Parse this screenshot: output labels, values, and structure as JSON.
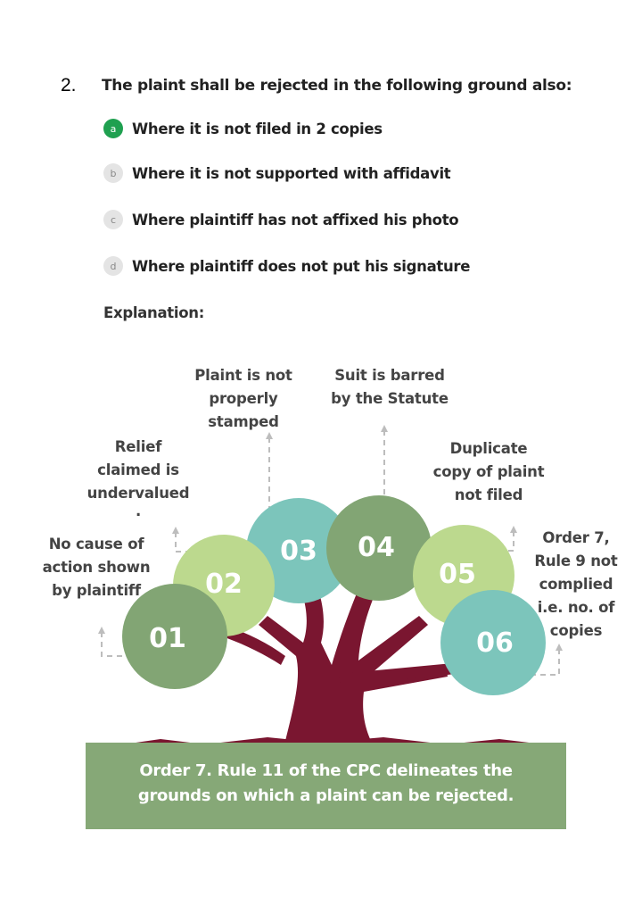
{
  "question": {
    "number": "2.",
    "text": "The plaint shall be rejected in the following ground also:",
    "options": [
      {
        "letter": "a",
        "text": "Where it is not filed in 2 copies",
        "correct": true
      },
      {
        "letter": "b",
        "text": "Where it is not supported with affidavit",
        "correct": false
      },
      {
        "letter": "c",
        "text": "Where plaintiff has not affixed his photo",
        "correct": false
      },
      {
        "letter": "d",
        "text": "Where plaintiff does not put his signature",
        "correct": false
      }
    ]
  },
  "explanation_label": "Explanation:",
  "diagram": {
    "circles": [
      {
        "num": "01",
        "color": "#82a574"
      },
      {
        "num": "02",
        "color": "#bcd98e"
      },
      {
        "num": "03",
        "color": "#7cc5bb"
      },
      {
        "num": "04",
        "color": "#82a574"
      },
      {
        "num": "05",
        "color": "#bcd98e"
      },
      {
        "num": "06",
        "color": "#7cc5bb"
      }
    ],
    "labels": {
      "l01": [
        "No cause of",
        "action shown",
        "by plaintiff"
      ],
      "l02": [
        "Relief",
        "claimed is",
        "undervalued",
        "."
      ],
      "l03": [
        "Plaint is not",
        "properly",
        "stamped"
      ],
      "l04": [
        "Suit is barred",
        "by the Statute"
      ],
      "l05": [
        "Duplicate",
        "copy of plaint",
        "not filed"
      ],
      "l06": [
        "Order 7,",
        "Rule 9 not",
        "complied",
        "i.e. no. of",
        "copies"
      ]
    },
    "footer": [
      "Order 7. Rule 11 of the CPC delineates the",
      "grounds on which a plaint can be rejected."
    ],
    "colors": {
      "trunk": "#7a1630",
      "ground": "#86a877",
      "connector": "#bdbdbd"
    }
  }
}
